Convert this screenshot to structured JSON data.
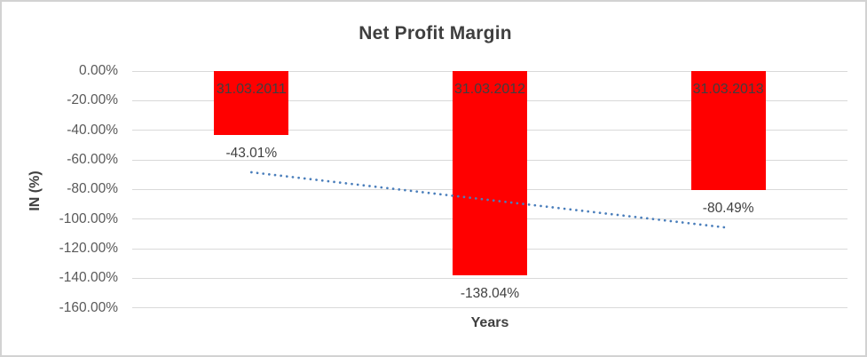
{
  "window": {
    "background": "#ffffff",
    "frame_border_color": "#d2d2d2"
  },
  "chart_data": {
    "type": "bar",
    "title": "Net Profit Margin",
    "xlabel": "Years",
    "ylabel": "IN (%)",
    "categories": [
      "31.03.2011",
      "31.03.2012",
      "31.03.2013"
    ],
    "values": [
      -43.01,
      -138.04,
      -80.49
    ],
    "value_labels": [
      "-43.01%",
      "-138.04%",
      "-80.49%"
    ],
    "y_tick_labels": [
      "0.00%",
      "-20.00%",
      "-40.00%",
      "-60.00%",
      "-80.00%",
      "-100.00%",
      "-120.00%",
      "-140.00%",
      "-160.00%"
    ],
    "y_tick_values": [
      0,
      -20,
      -40,
      -60,
      -80,
      -100,
      -120,
      -140,
      -160
    ],
    "ylim": [
      -160,
      0
    ],
    "grid": true,
    "legend_position": "none",
    "bar_color": "#ff0000",
    "gridline_color": "#d9d9d9",
    "category_label_position": "inside-top",
    "value_label_position": "outside-end",
    "trendline": {
      "type": "linear",
      "style": "dotted",
      "color": "#4a7ebb",
      "start_value": -68.4,
      "end_value": -105.9
    },
    "text_colors": {
      "title": "#3f3f3f",
      "axis_titles": "#3f3f3f",
      "tick_labels": "#595959",
      "data_labels": "#404040",
      "category_labels": "#3f3f3f"
    }
  }
}
